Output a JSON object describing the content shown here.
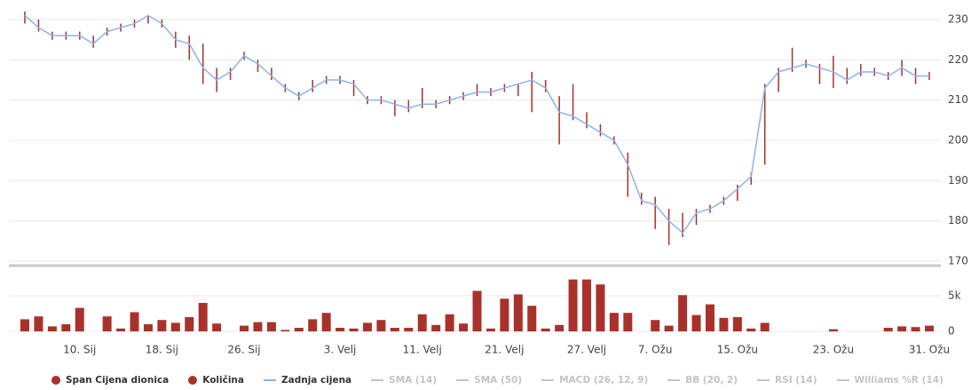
{
  "chart_data": {
    "type": "ohlc",
    "xticks": [
      {
        "value": 4,
        "label": "10. Sij"
      },
      {
        "value": 10,
        "label": "18. Sij"
      },
      {
        "value": 16,
        "label": "26. Sij"
      },
      {
        "value": 23,
        "label": "3. Velj"
      },
      {
        "value": 29,
        "label": "11. Velj"
      },
      {
        "value": 35,
        "label": "21. Velj"
      },
      {
        "value": 41,
        "label": "27. Velj"
      },
      {
        "value": 46,
        "label": "7. Ožu"
      },
      {
        "value": 52,
        "label": "15. Ožu"
      },
      {
        "value": 59,
        "label": "23. Ožu"
      },
      {
        "value": 66,
        "label": "31. Ožu"
      }
    ],
    "xlim": [
      0,
      66
    ],
    "ylim": [
      168,
      233
    ],
    "yticks": [
      170,
      180,
      190,
      200,
      210,
      220,
      230
    ],
    "y2lim": [
      0,
      7500
    ],
    "y2ticks": [
      0,
      {
        "value": 5000,
        "label": "5k"
      }
    ],
    "grid": true,
    "series": [
      {
        "name": "Span Cijena dionica",
        "color": "#a8322b",
        "high": [
          232,
          230,
          227,
          227,
          227,
          226,
          228,
          229,
          230,
          231,
          230,
          227,
          226,
          224,
          218,
          218,
          222,
          220,
          218,
          214,
          212,
          215,
          216,
          216,
          215,
          211,
          211,
          210,
          210,
          213,
          210,
          211,
          212,
          214,
          213,
          214,
          214,
          217,
          215,
          211,
          214,
          207,
          204,
          201,
          197,
          187,
          186,
          183,
          182,
          183,
          184,
          186,
          189,
          192,
          214,
          218,
          223,
          220,
          219,
          221,
          218,
          219,
          218,
          217,
          220,
          218,
          217
        ],
        "low": [
          229,
          227,
          225,
          225,
          225,
          223,
          226,
          227,
          228,
          229,
          228,
          223,
          220,
          214,
          212,
          215,
          220,
          217,
          215,
          212,
          210,
          212,
          214,
          214,
          211,
          209,
          209,
          206,
          207,
          208,
          208,
          209,
          210,
          211,
          211,
          212,
          211,
          207,
          212,
          199,
          205,
          203,
          201,
          199,
          186,
          184,
          178,
          174,
          176,
          179,
          182,
          184,
          185,
          189,
          194,
          212,
          217,
          218,
          214,
          213,
          214,
          216,
          216,
          215,
          216,
          214,
          215
        ]
      },
      {
        "name": "Količina",
        "color": "#a8322b",
        "axis": "y2",
        "values": [
          1700,
          2100,
          700,
          1000,
          3300,
          0,
          2100,
          400,
          2700,
          1000,
          1600,
          1200,
          2000,
          4000,
          1100,
          0,
          800,
          1300,
          1300,
          200,
          500,
          1700,
          2600,
          500,
          400,
          1200,
          1600,
          500,
          500,
          2400,
          900,
          2400,
          1100,
          5700,
          400,
          4600,
          5200,
          3600,
          400,
          900,
          7300,
          7300,
          6600,
          2600,
          2600,
          0,
          1600,
          800,
          5100,
          2300,
          3800,
          1900,
          2000,
          400,
          1200,
          0,
          0,
          0,
          0,
          300,
          0,
          0,
          0,
          500,
          700,
          600,
          800
        ]
      },
      {
        "name": "Zadnja cijena",
        "color": "#8ab4e8",
        "values": [
          231,
          228,
          226,
          226,
          226,
          224,
          227,
          228,
          229,
          231,
          229,
          225,
          224,
          218,
          215,
          217,
          221,
          219,
          216,
          213,
          211,
          213,
          215,
          215,
          214,
          210,
          210,
          209,
          208,
          209,
          209,
          210,
          211,
          212,
          212,
          213,
          214,
          215,
          213,
          207,
          206,
          204,
          202,
          200,
          194,
          185,
          184,
          180,
          177,
          182,
          183,
          185,
          188,
          191,
          213,
          217,
          218,
          219,
          218,
          217,
          215,
          217,
          217,
          216,
          218,
          216,
          216
        ]
      }
    ],
    "indicators": [
      "SMA (14)",
      "SMA (50)",
      "MACD (26, 12, 9)",
      "BB (20, 2)",
      "RSI (14)",
      "Williams %R (14)"
    ]
  }
}
